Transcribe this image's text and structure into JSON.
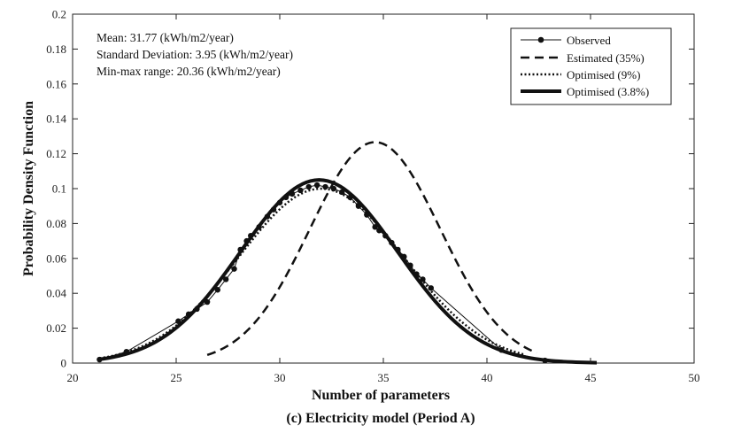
{
  "chart_data": {
    "type": "line",
    "title": "",
    "caption": "(c) Electricity model (Period A)",
    "xlabel": "Number of parameters",
    "ylabel": "Probability Density Function",
    "xlim": [
      20,
      50
    ],
    "ylim": [
      0,
      0.2
    ],
    "xticks": [
      "20",
      "25",
      "30",
      "35",
      "40",
      "45",
      "50"
    ],
    "yticks": [
      "0",
      "0.02",
      "0.04",
      "0.06",
      "0.08",
      "0.1",
      "0.12",
      "0.14",
      "0.16",
      "0.18",
      "0.2"
    ],
    "grid": false,
    "legend_position": "top-right",
    "annotations": [
      "Mean: 31.77 (kWh/m2/year)",
      "Standard Deviation: 3.95 (kWh/m2/year)",
      "Min-max range: 20.36 (kWh/m2/year)"
    ],
    "series": [
      {
        "name": "Observed",
        "style": "solid-thin-markers",
        "points": [
          [
            21.3,
            0.002
          ],
          [
            22.6,
            0.0065
          ],
          [
            25.1,
            0.024
          ],
          [
            25.6,
            0.028
          ],
          [
            26.0,
            0.031
          ],
          [
            26.5,
            0.035
          ],
          [
            27.0,
            0.042
          ],
          [
            27.4,
            0.048
          ],
          [
            27.8,
            0.054
          ],
          [
            28.1,
            0.065
          ],
          [
            28.4,
            0.07
          ],
          [
            28.6,
            0.073
          ],
          [
            29.0,
            0.078
          ],
          [
            29.4,
            0.084
          ],
          [
            29.7,
            0.088
          ],
          [
            30.0,
            0.092
          ],
          [
            30.3,
            0.095
          ],
          [
            30.6,
            0.097
          ],
          [
            31.0,
            0.099
          ],
          [
            31.4,
            0.101
          ],
          [
            31.8,
            0.102
          ],
          [
            32.2,
            0.101
          ],
          [
            32.6,
            0.1
          ],
          [
            33.0,
            0.098
          ],
          [
            33.4,
            0.095
          ],
          [
            33.8,
            0.09
          ],
          [
            34.2,
            0.085
          ],
          [
            34.6,
            0.078
          ],
          [
            34.8,
            0.076
          ],
          [
            35.1,
            0.073
          ],
          [
            35.4,
            0.069
          ],
          [
            35.7,
            0.065
          ],
          [
            36.0,
            0.061
          ],
          [
            36.3,
            0.056
          ],
          [
            36.6,
            0.051
          ],
          [
            36.9,
            0.048
          ],
          [
            37.3,
            0.043
          ],
          [
            40.7,
            0.0075
          ],
          [
            42.8,
            0.0015
          ]
        ]
      },
      {
        "name": "Estimated (35%)",
        "style": "dashed",
        "mu": 34.6,
        "sigma": 3.15,
        "range": [
          26.5,
          42.4
        ]
      },
      {
        "name": "Optimised (9%)",
        "style": "dotted",
        "mu": 32.0,
        "sigma": 3.99,
        "range": [
          21.3,
          41.8
        ]
      },
      {
        "name": "Optimised (3.8%)",
        "style": "solid-thick",
        "mu": 31.9,
        "sigma": 3.8,
        "range": [
          21.3,
          45.3
        ]
      }
    ]
  }
}
